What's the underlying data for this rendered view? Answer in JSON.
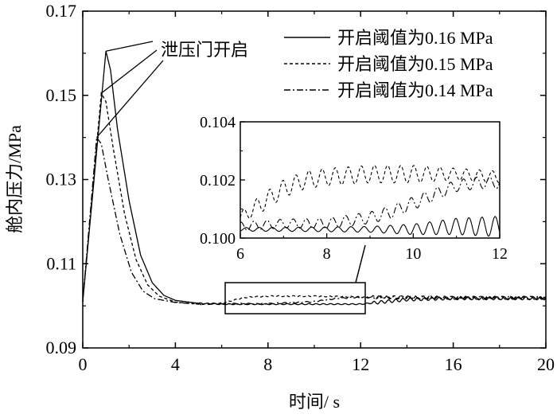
{
  "chart_data": [
    {
      "type": "line",
      "title": "",
      "xlabel": "时间/ s",
      "ylabel": "舱内压力/MPa",
      "xlim": [
        0,
        20
      ],
      "ylim": [
        0.09,
        0.17
      ],
      "xticks": [
        "0",
        "4",
        "8",
        "12",
        "16",
        "20"
      ],
      "yticks": [
        "0.09",
        "0.11",
        "0.13",
        "0.15",
        "0.17"
      ],
      "grid": false,
      "legend_position": "top-right",
      "annotation": "泄压门开启",
      "series": [
        {
          "name": "开启阈值为0.16 MPa",
          "style": "solid",
          "x": [
            0,
            1.0,
            1.2,
            1.5,
            2.0,
            2.5,
            3.0,
            3.5,
            4.0,
            5.0,
            6.0,
            8.0,
            10.0,
            12.0,
            14.0,
            16.0,
            18.0,
            20.0
          ],
          "y": [
            0.101,
            0.1605,
            0.156,
            0.142,
            0.125,
            0.112,
            0.1055,
            0.1025,
            0.1013,
            0.1006,
            0.1004,
            0.1004,
            0.1004,
            0.1004,
            0.1015,
            0.1018,
            0.1018,
            0.1018
          ]
        },
        {
          "name": "开启阈值为0.15 MPa",
          "style": "dashed",
          "x": [
            0,
            0.8,
            1.0,
            1.3,
            1.8,
            2.3,
            2.8,
            3.3,
            4.0,
            5.0,
            6.0,
            7.0,
            8.0,
            10.0,
            12.0,
            14.0,
            16.0,
            18.0,
            20.0
          ],
          "y": [
            0.101,
            0.1505,
            0.1485,
            0.138,
            0.122,
            0.111,
            0.105,
            0.1023,
            0.1009,
            0.1004,
            0.1006,
            0.102,
            0.1023,
            0.1023,
            0.1021,
            0.102,
            0.1019,
            0.1019,
            0.1019
          ]
        },
        {
          "name": "开启阈值为0.14 MPa",
          "style": "dash-dot",
          "x": [
            0,
            0.6,
            0.8,
            1.1,
            1.6,
            2.1,
            2.6,
            3.1,
            4.0,
            5.0,
            6.0,
            8.0,
            10.0,
            11.0,
            12.0,
            14.0,
            16.0,
            18.0,
            20.0
          ],
          "y": [
            0.101,
            0.14,
            0.1385,
            0.13,
            0.117,
            0.108,
            0.1035,
            0.1017,
            0.1008,
            0.1004,
            0.1005,
            0.1005,
            0.101,
            0.1018,
            0.102,
            0.102,
            0.1019,
            0.1019,
            0.1019
          ]
        }
      ]
    },
    {
      "type": "line",
      "title": "",
      "xlim": [
        6,
        12
      ],
      "ylim": [
        0.1,
        0.104
      ],
      "xticks": [
        "6",
        "8",
        "10",
        "12"
      ],
      "yticks": [
        "0.100",
        "0.102",
        "0.104"
      ],
      "grid": false,
      "series": [
        {
          "name": "开启阈值为0.16 MPa",
          "style": "solid",
          "base_x": [
            6,
            8,
            9,
            10,
            11,
            12
          ],
          "base_y": [
            0.1003,
            0.1003,
            0.1003,
            0.1003,
            0.1004,
            0.1004
          ],
          "amplitude": [
            6e-05,
            8e-05,
            0.0001,
            0.00018,
            0.00028,
            0.00035
          ]
        },
        {
          "name": "开启阈值为0.15 MPa",
          "style": "dashed",
          "base_x": [
            6,
            6.5,
            7,
            7.5,
            8,
            9,
            10,
            11,
            12
          ],
          "base_y": [
            0.1007,
            0.1012,
            0.1017,
            0.102,
            0.1021,
            0.1022,
            0.1022,
            0.1022,
            0.1021
          ],
          "amplitude": [
            0.0002,
            0.0003,
            0.0003,
            0.0003,
            0.0003,
            0.0003,
            0.0003,
            0.0002,
            0.0002
          ]
        },
        {
          "name": "开启阈值为0.14 MPa",
          "style": "dash-dot",
          "base_x": [
            6,
            7,
            8,
            9,
            9.5,
            10,
            10.5,
            11,
            11.5,
            12
          ],
          "base_y": [
            0.1004,
            0.1005,
            0.1005,
            0.1007,
            0.1009,
            0.1012,
            0.1015,
            0.1018,
            0.1019,
            0.1019
          ],
          "amplitude": [
            0.00015,
            0.00015,
            0.00018,
            0.0002,
            0.00022,
            0.00022,
            0.00022,
            0.0002,
            0.0002,
            0.0002
          ]
        }
      ]
    }
  ]
}
